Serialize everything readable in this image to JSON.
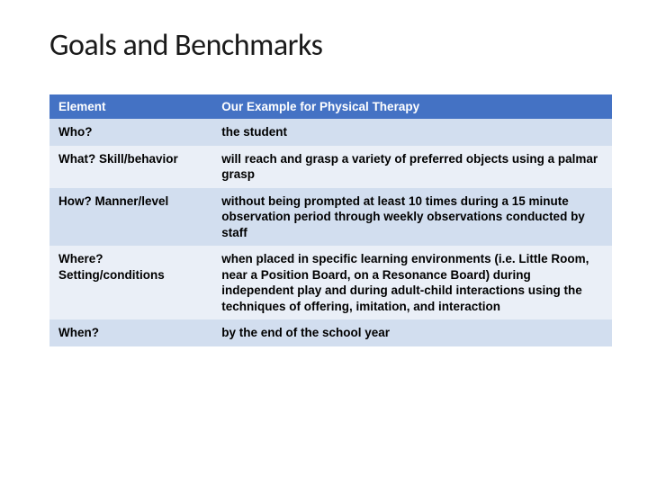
{
  "title": "Goals and Benchmarks",
  "table": {
    "header_bg": "#4472c4",
    "header_fg": "#ffffff",
    "row_odd_bg": "#d2deef",
    "row_even_bg": "#eaeff7",
    "col_widths_pct": [
      29,
      71
    ],
    "font_size_pt": 13.5,
    "columns": [
      "Element",
      "Our Example for Physical Therapy"
    ],
    "rows": [
      {
        "element": "Who?",
        "example": "the student"
      },
      {
        "element": "What? Skill/behavior",
        "example": "will reach and grasp a variety of preferred objects using a palmar grasp"
      },
      {
        "element": "How? Manner/level",
        "example": "without being prompted at least 10 times during a 15 minute observation period through weekly observations conducted by staff"
      },
      {
        "element": "Where? Setting/conditions",
        "example": "when placed in specific learning environments (i.e. Little Room, near a Position Board, on a Resonance Board) during independent play and during adult-child interactions using the techniques of offering, imitation, and interaction"
      },
      {
        "element": "When?",
        "example": "by the end of the school year"
      }
    ]
  }
}
